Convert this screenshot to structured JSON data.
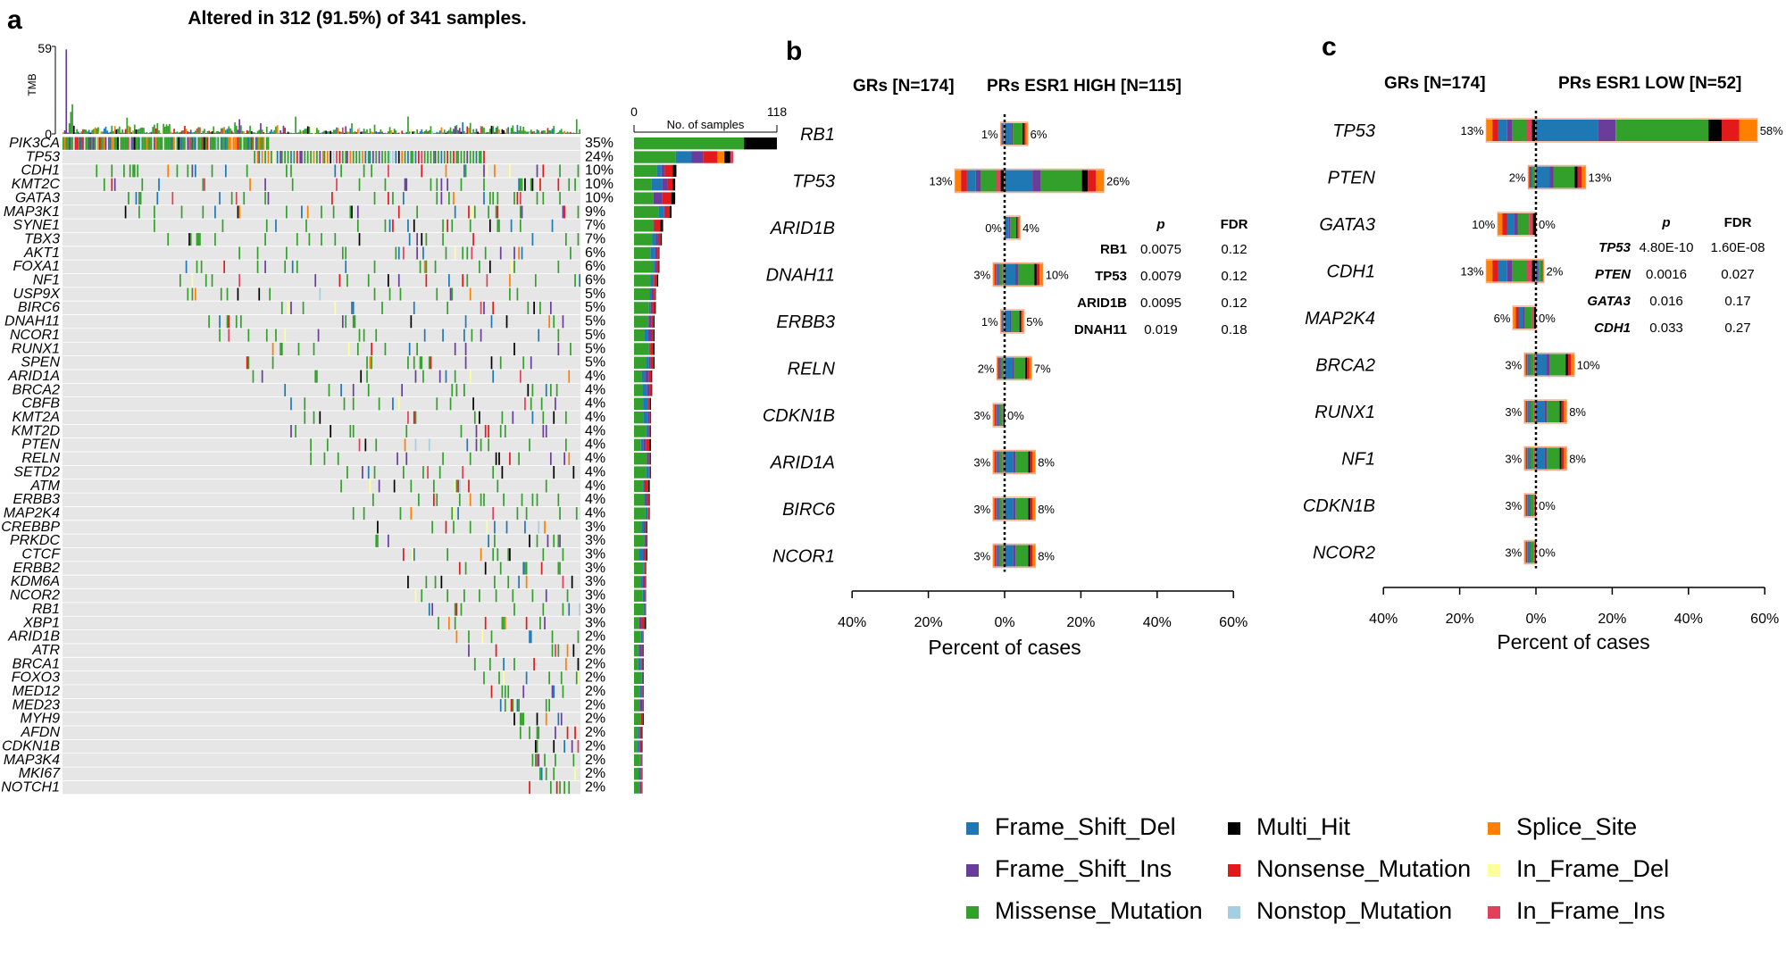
{
  "panel_labels": {
    "a": "a",
    "b": "b",
    "c": "c"
  },
  "oncoplot": {
    "title": "Altered in 312 (91.5%) of 341 samples.",
    "tmb_label": "TMB",
    "tmb_ticks": [
      "59",
      "0"
    ],
    "side_bar_title": "No. of samples",
    "side_bar_ticks": [
      "0",
      "118"
    ]
  },
  "legend": [
    {
      "label": "Frame_Shift_Del",
      "color": "#1f78b4"
    },
    {
      "label": "Multi_Hit",
      "color": "#000000"
    },
    {
      "label": "Splice_Site",
      "color": "#ff7f00"
    },
    {
      "label": "Frame_Shift_Ins",
      "color": "#6a3d9a"
    },
    {
      "label": "Nonsense_Mutation",
      "color": "#e31a1c"
    },
    {
      "label": "In_Frame_Del",
      "color": "#ffff99"
    },
    {
      "label": "Missense_Mutation",
      "color": "#33a02c"
    },
    {
      "label": "Nonstop_Mutation",
      "color": "#a6cee3"
    },
    {
      "label": "In_Frame_Ins",
      "color": "#e0405a"
    }
  ],
  "chart_data": [
    {
      "type": "heatmap",
      "title": "Altered in 312 (91.5%) of 341 samples.",
      "genes": [
        "PIK3CA",
        "TP53",
        "CDH1",
        "KMT2C",
        "GATA3",
        "MAP3K1",
        "SYNE1",
        "TBX3",
        "AKT1",
        "FOXA1",
        "NF1",
        "USP9X",
        "BIRC6",
        "DNAH11",
        "NCOR1",
        "RUNX1",
        "SPEN",
        "ARID1A",
        "BRCA2",
        "CBFB",
        "KMT2A",
        "KMT2D",
        "PTEN",
        "RELN",
        "SETD2",
        "ATM",
        "ERBB3",
        "MAP2K4",
        "CREBBP",
        "PRKDC",
        "CTCF",
        "ERBB2",
        "KDM6A",
        "NCOR2",
        "RB1",
        "XBP1",
        "ARID1B",
        "ATR",
        "BRCA1",
        "FOXO3",
        "MED12",
        "MED23",
        "MYH9",
        "AFDN",
        "CDKN1B",
        "MAP3K4",
        "MKI67",
        "NOTCH1"
      ],
      "percents": [
        "35%",
        "24%",
        "10%",
        "10%",
        "10%",
        "9%",
        "7%",
        "7%",
        "6%",
        "6%",
        "6%",
        "5%",
        "5%",
        "5%",
        "5%",
        "5%",
        "5%",
        "4%",
        "4%",
        "4%",
        "4%",
        "4%",
        "4%",
        "4%",
        "4%",
        "4%",
        "4%",
        "4%",
        "3%",
        "3%",
        "3%",
        "3%",
        "3%",
        "3%",
        "3%",
        "3%",
        "2%",
        "2%",
        "2%",
        "2%",
        "2%",
        "2%",
        "2%",
        "2%",
        "2%",
        "2%",
        "2%",
        "2%"
      ],
      "sample_counts": [
        118,
        82,
        35,
        34,
        34,
        31,
        24,
        23,
        21,
        21,
        20,
        18,
        18,
        17,
        17,
        17,
        17,
        15,
        15,
        14,
        14,
        14,
        14,
        14,
        14,
        13,
        13,
        13,
        11,
        11,
        11,
        10,
        10,
        10,
        10,
        10,
        8,
        8,
        8,
        8,
        8,
        8,
        8,
        7,
        7,
        7,
        7,
        7
      ],
      "side_bar_range": [
        0,
        118
      ],
      "tmb_range": [
        0,
        59
      ],
      "n_samples": 341
    },
    {
      "type": "bar",
      "title": "GRs [N=174] vs PRs ESR1 HIGH [N=115]",
      "left_group": "GRs [N=174]",
      "right_group": "PRs ESR1 HIGH [N=115]",
      "xlabel": "Percent of cases",
      "xlim": [
        -40,
        60
      ],
      "xticks": [
        "40%",
        "20%",
        "0%",
        "20%",
        "40%",
        "60%"
      ],
      "genes": [
        "RB1",
        "TP53",
        "ARID1B",
        "DNAH11",
        "ERBB3",
        "RELN",
        "CDKN1B",
        "ARID1A",
        "BIRC6",
        "NCOR1"
      ],
      "left_values": [
        1,
        13,
        0,
        3,
        1,
        2,
        3,
        3,
        3,
        3
      ],
      "right_values": [
        6,
        26,
        4,
        10,
        5,
        7,
        0,
        8,
        8,
        8
      ],
      "left_labels": [
        "1%",
        "13%",
        "0%",
        "3%",
        "1%",
        "2%",
        "3%",
        "3%",
        "3%",
        "3%"
      ],
      "right_labels": [
        "6%",
        "26%",
        "4%",
        "10%",
        "5%",
        "7%",
        "0%",
        "8%",
        "8%",
        "8%"
      ],
      "stats_header": [
        "p",
        "FDR"
      ],
      "stats": [
        {
          "gene": "RB1",
          "p": "0.0075",
          "fdr": "0.12"
        },
        {
          "gene": "TP53",
          "p": "0.0079",
          "fdr": "0.12"
        },
        {
          "gene": "ARID1B",
          "p": "0.0095",
          "fdr": "0.12"
        },
        {
          "gene": "DNAH11",
          "p": "0.019",
          "fdr": "0.18"
        }
      ]
    },
    {
      "type": "bar",
      "title": "GRs [N=174] vs PRs ESR1 LOW [N=52]",
      "left_group": "GRs [N=174]",
      "right_group": "PRs ESR1 LOW [N=52]",
      "xlabel": "Percent of cases",
      "xlim": [
        -40,
        60
      ],
      "xticks": [
        "40%",
        "20%",
        "0%",
        "20%",
        "40%",
        "60%"
      ],
      "genes": [
        "TP53",
        "PTEN",
        "GATA3",
        "CDH1",
        "MAP2K4",
        "BRCA2",
        "RUNX1",
        "NF1",
        "CDKN1B",
        "NCOR2"
      ],
      "left_values": [
        13,
        2,
        10,
        13,
        6,
        3,
        3,
        3,
        3,
        3
      ],
      "right_values": [
        58,
        13,
        0,
        2,
        0,
        10,
        8,
        8,
        0,
        0
      ],
      "left_labels": [
        "13%",
        "2%",
        "10%",
        "13%",
        "6%",
        "3%",
        "3%",
        "3%",
        "3%",
        "3%"
      ],
      "right_labels": [
        "58%",
        "13%",
        "0%",
        "2%",
        "0%",
        "10%",
        "8%",
        "8%",
        "0%",
        "0%"
      ],
      "stats_header": [
        "p",
        "FDR"
      ],
      "stats": [
        {
          "gene": "TP53",
          "p": "4.80E-10",
          "fdr": "1.60E-08"
        },
        {
          "gene": "PTEN",
          "p": "0.0016",
          "fdr": "0.027"
        },
        {
          "gene": "GATA3",
          "p": "0.016",
          "fdr": "0.17"
        },
        {
          "gene": "CDH1",
          "p": "0.033",
          "fdr": "0.27"
        }
      ]
    }
  ]
}
